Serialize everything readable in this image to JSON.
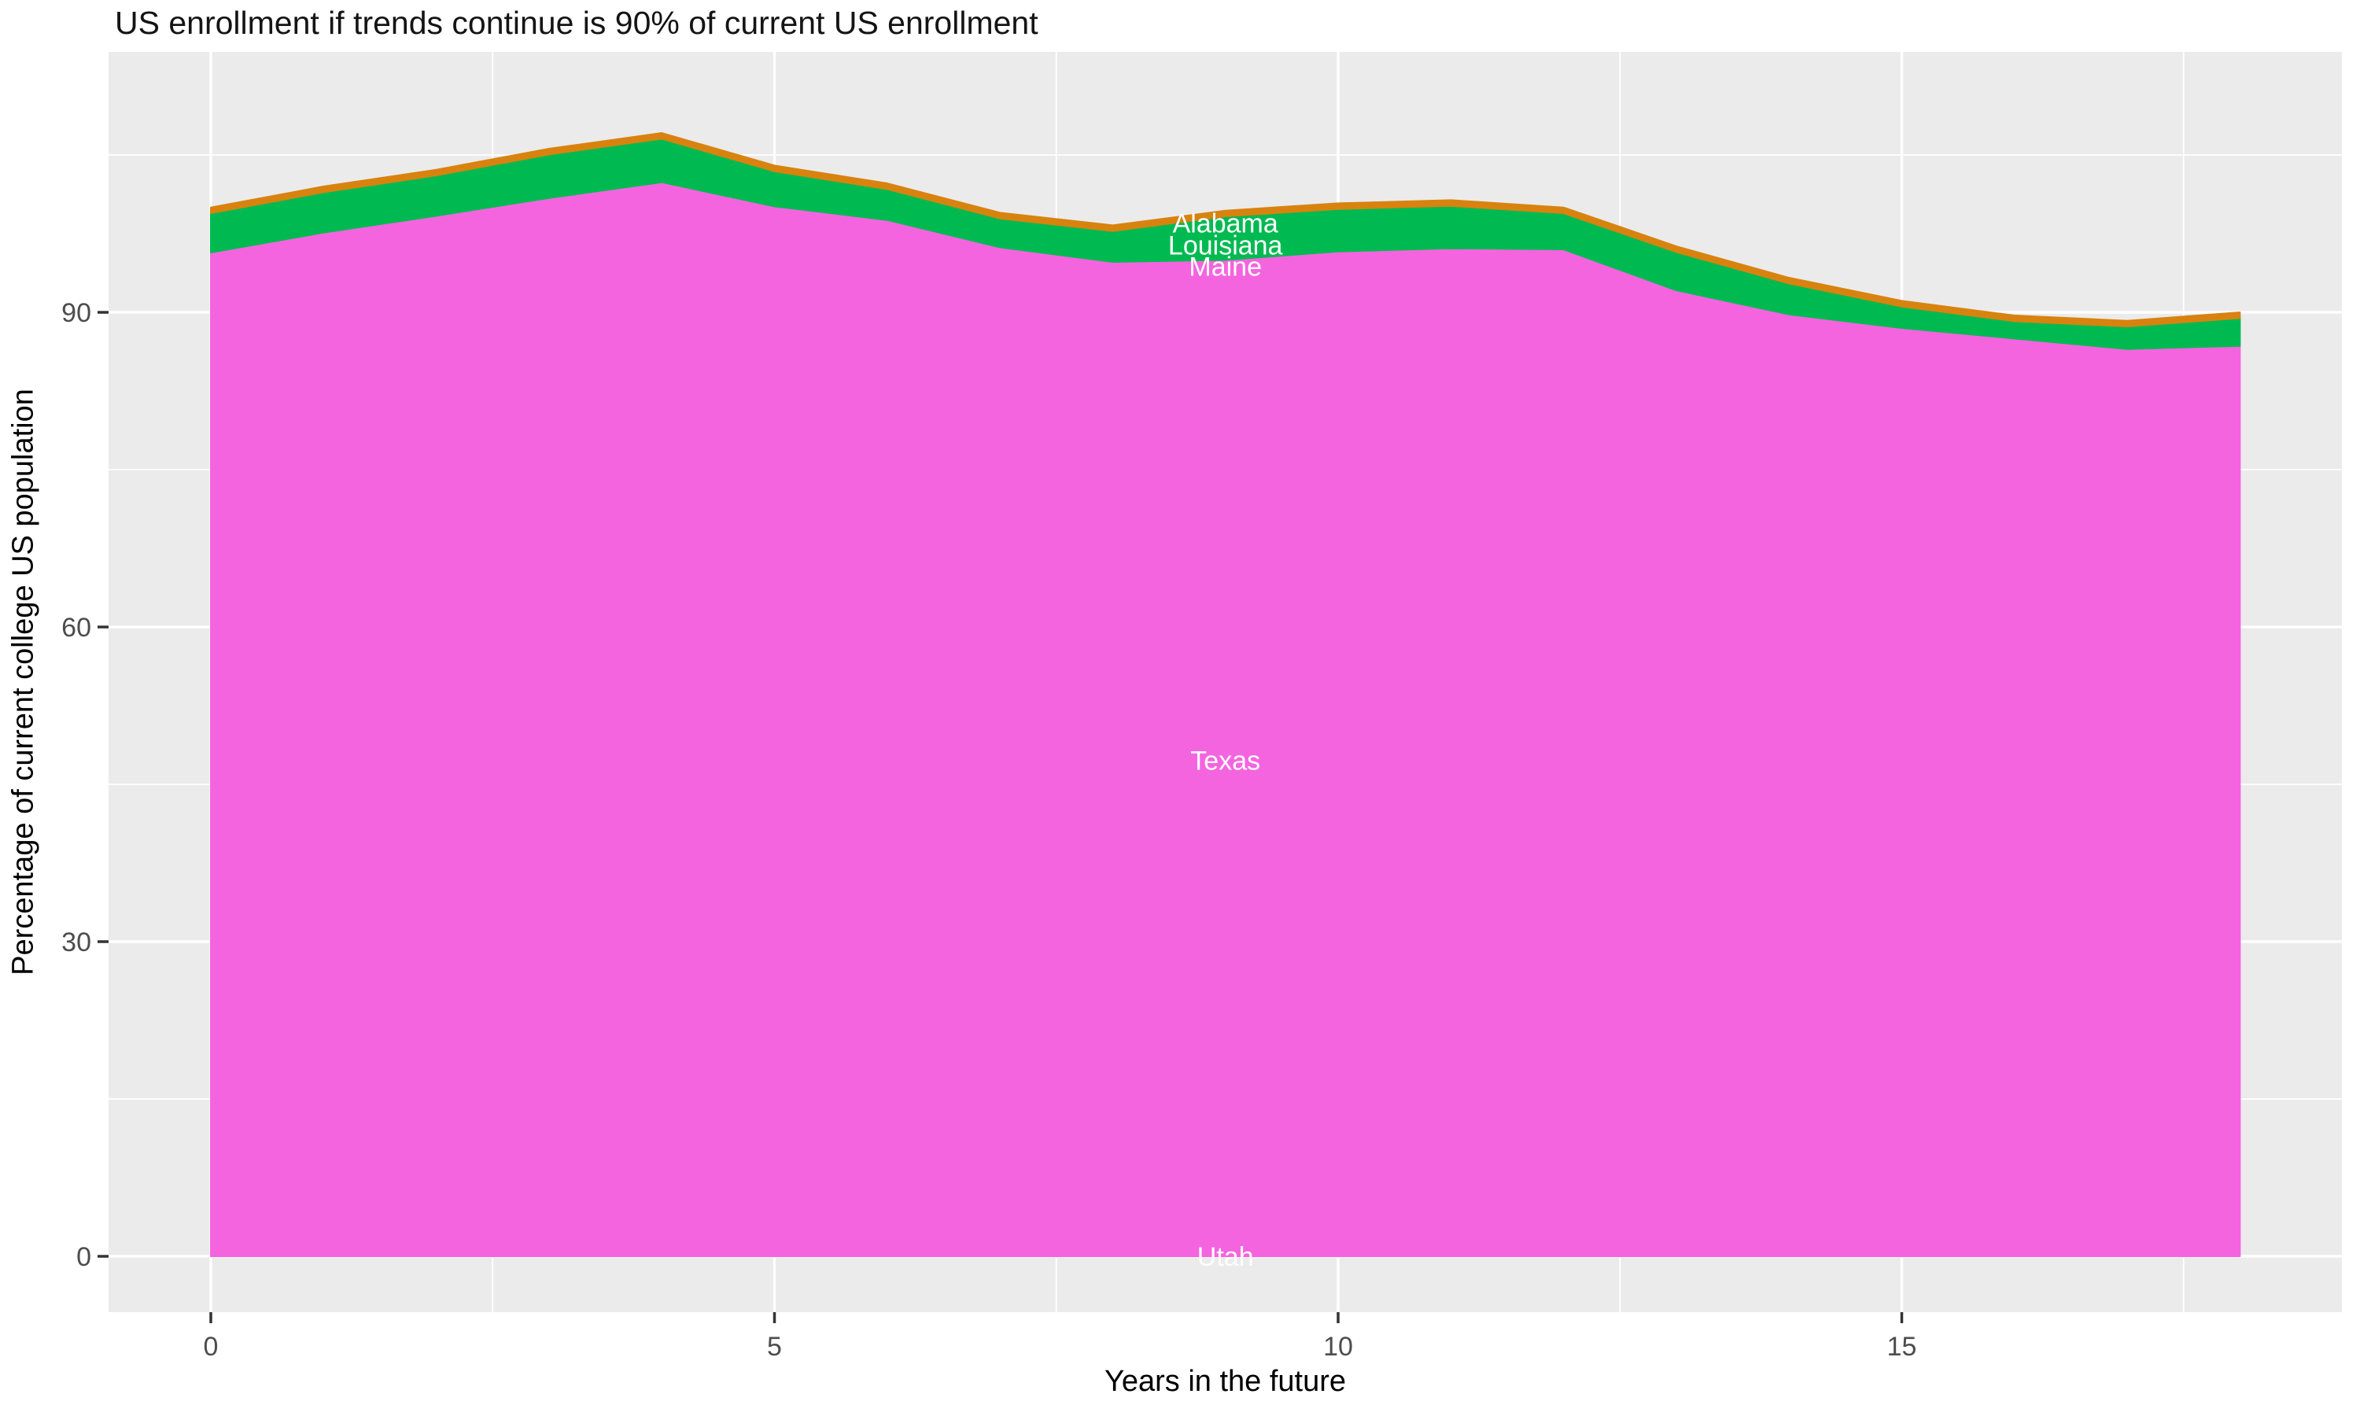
{
  "title": "US enrollment if trends continue is 90% of current US enrollment",
  "chart_data": {
    "type": "area",
    "stacked": true,
    "title": "US enrollment if trends continue is 90% of current US enrollment",
    "xlabel": "Years in the future",
    "ylabel": "Percentage of current college US population",
    "x": [
      0,
      1,
      2,
      3,
      4,
      5,
      6,
      7,
      8,
      9,
      10,
      11,
      12,
      13,
      14,
      15,
      16,
      17,
      18
    ],
    "xlim": [
      -0.9,
      18.9
    ],
    "ylim": [
      -5.3,
      114.8
    ],
    "x_major_ticks": [
      0,
      5,
      10,
      15
    ],
    "x_minor_gridlines": [
      2.5,
      7.5,
      12.5,
      17.5
    ],
    "y_major_ticks": [
      0,
      30,
      60,
      90
    ],
    "y_minor_gridlines": [
      15,
      45,
      75,
      105
    ],
    "grid": "on",
    "legend": "none",
    "series": [
      {
        "name": "Utah",
        "values": [
          0,
          0,
          0,
          0,
          0,
          0,
          0,
          0,
          0,
          0,
          0,
          0,
          0,
          0,
          0,
          0,
          0,
          0,
          0
        ]
      },
      {
        "name": "Texas",
        "color": "#F564DF",
        "values": [
          95.7,
          97.6,
          99.2,
          100.9,
          102.4,
          100.1,
          98.8,
          96.2,
          94.8,
          95.0,
          95.8,
          96.1,
          96.0,
          92.1,
          89.8,
          88.5,
          87.5,
          86.5,
          86.8
        ]
      },
      {
        "name": "Maine",
        "color": "#00BA51",
        "values": [
          0.25,
          0.25,
          0.25,
          0.25,
          0.25,
          0.25,
          0.25,
          0.25,
          0.25,
          0.25,
          0.25,
          0.25,
          0.25,
          0.25,
          0.25,
          0.25,
          0.25,
          0.25,
          0.25
        ]
      },
      {
        "name": "Louisiana",
        "color": "#00BA51",
        "values": [
          3.5,
          3.6,
          3.6,
          3.9,
          3.9,
          3.1,
          2.7,
          2.5,
          2.7,
          3.9,
          3.8,
          3.8,
          3.2,
          3.4,
          2.7,
          1.8,
          1.4,
          1.9,
          2.4
        ]
      },
      {
        "name": "Alabama",
        "color": "#D8830F",
        "values": [
          0.55,
          0.55,
          0.55,
          0.55,
          0.55,
          0.55,
          0.55,
          0.55,
          0.55,
          0.55,
          0.55,
          0.55,
          0.55,
          0.55,
          0.55,
          0.55,
          0.55,
          0.55,
          0.55
        ]
      }
    ],
    "annotations": [
      {
        "label": "Alabama",
        "x": 9.0,
        "y": 98.5,
        "color": "#FFFFFF"
      },
      {
        "label": "Louisiana",
        "x": 9.0,
        "y": 96.4,
        "color": "#FFFFFF"
      },
      {
        "label": "Maine",
        "x": 9.0,
        "y": 94.4,
        "color": "#FFFFFF"
      },
      {
        "label": "Texas",
        "x": 9.0,
        "y": 47.3,
        "color": "#FFFFFF"
      },
      {
        "label": "Utah",
        "x": 9.0,
        "y": 0.0,
        "color": "#FFFFFF"
      }
    ],
    "colors": {
      "panel_background": "#EBEBEB",
      "gridline": "#FFFFFF",
      "tick_mark": "#333333",
      "tick_label": "#4D4D4D",
      "axis_title": "#000000"
    }
  }
}
